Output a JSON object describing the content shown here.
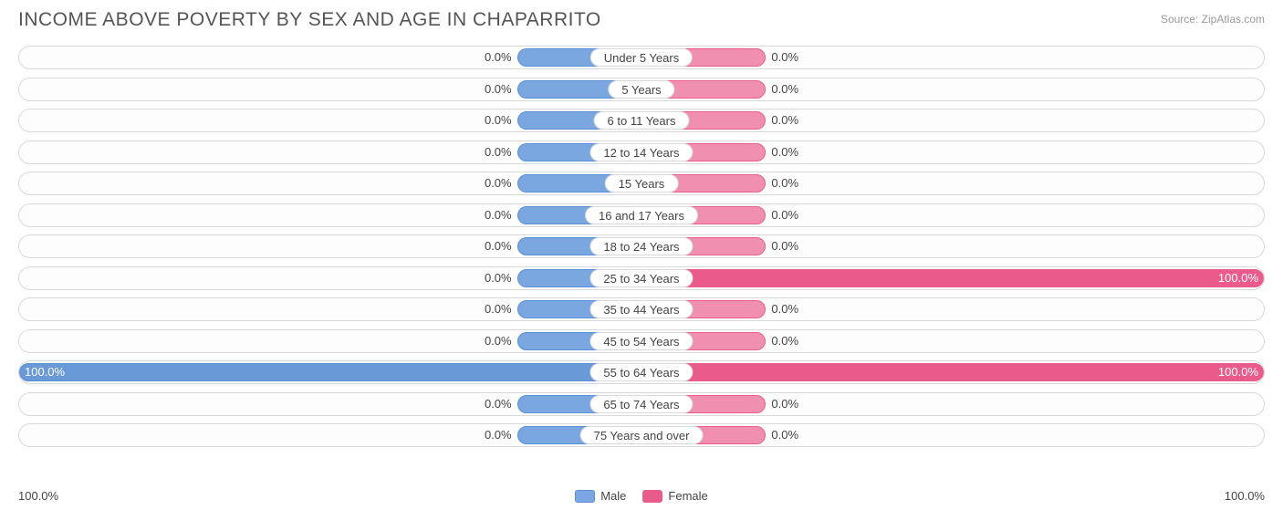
{
  "title": "INCOME ABOVE POVERTY BY SEX AND AGE IN CHAPARRITO",
  "source": "Source: ZipAtlas.com",
  "chart": {
    "type": "diverging-bar",
    "male_color": "#7ba7e0",
    "male_border": "#5a8fd6",
    "female_color": "#f08fb0",
    "female_border": "#e85d8e",
    "female_full_color": "#ea5b8c",
    "male_full_color": "#6a99d8",
    "track_border": "#d9d9d9",
    "track_bg": "#fdfdfd",
    "label_pill_bg": "#ffffff",
    "text_color": "#444444",
    "min_bar_pct": 20,
    "axis_left_label": "100.0%",
    "axis_right_label": "100.0%",
    "categories": [
      {
        "label": "Under 5 Years",
        "male": 0.0,
        "female": 0.0
      },
      {
        "label": "5 Years",
        "male": 0.0,
        "female": 0.0
      },
      {
        "label": "6 to 11 Years",
        "male": 0.0,
        "female": 0.0
      },
      {
        "label": "12 to 14 Years",
        "male": 0.0,
        "female": 0.0
      },
      {
        "label": "15 Years",
        "male": 0.0,
        "female": 0.0
      },
      {
        "label": "16 and 17 Years",
        "male": 0.0,
        "female": 0.0
      },
      {
        "label": "18 to 24 Years",
        "male": 0.0,
        "female": 0.0
      },
      {
        "label": "25 to 34 Years",
        "male": 0.0,
        "female": 100.0
      },
      {
        "label": "35 to 44 Years",
        "male": 0.0,
        "female": 0.0
      },
      {
        "label": "45 to 54 Years",
        "male": 0.0,
        "female": 0.0
      },
      {
        "label": "55 to 64 Years",
        "male": 100.0,
        "female": 100.0
      },
      {
        "label": "65 to 74 Years",
        "male": 0.0,
        "female": 0.0
      },
      {
        "label": "75 Years and over",
        "male": 0.0,
        "female": 0.0
      }
    ]
  },
  "legend": {
    "male_label": "Male",
    "female_label": "Female"
  }
}
